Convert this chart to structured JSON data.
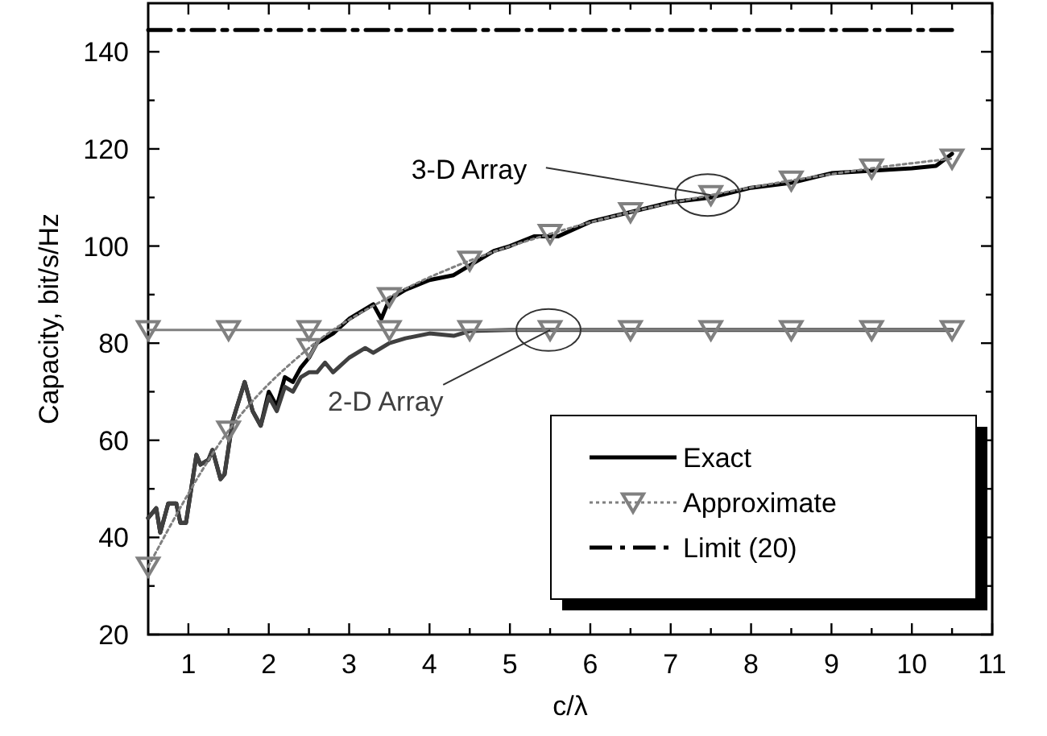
{
  "chart_data": {
    "type": "line",
    "xlabel": "c/λ",
    "ylabel": "Capacity, bit/s/Hz",
    "xlim": [
      0.5,
      11
    ],
    "ylim": [
      20,
      150
    ],
    "xticks": [
      1,
      {
        "value": 1.5,
        "label": null
      },
      2,
      {
        "value": 2.5,
        "label": null
      },
      3,
      {
        "value": 3.5,
        "label": null
      },
      4,
      {
        "value": 4.5,
        "label": null
      },
      5,
      {
        "value": 5.5,
        "label": null
      },
      6,
      {
        "value": 6.5,
        "label": null
      },
      7,
      {
        "value": 7.5,
        "label": null
      },
      8,
      {
        "value": 8.5,
        "label": null
      },
      9,
      {
        "value": 9.5,
        "label": null
      },
      10,
      {
        "value": 10.5,
        "label": null
      },
      11
    ],
    "yticks": [
      20,
      {
        "value": 30,
        "label": null
      },
      40,
      {
        "value": 50,
        "label": null
      },
      60,
      {
        "value": 70,
        "label": null
      },
      80,
      {
        "value": 90,
        "label": null
      },
      100,
      {
        "value": 110,
        "label": null
      },
      120,
      {
        "value": 130,
        "label": null
      },
      140
    ],
    "grid": false,
    "legend": "bottom right",
    "series": [
      {
        "name": "Exact",
        "color": "#000000",
        "line_style": "solid",
        "marker": "none",
        "x": [
          0.5,
          0.6,
          0.65,
          0.75,
          0.85,
          0.9,
          0.97,
          1.1,
          1.15,
          1.25,
          1.3,
          1.4,
          1.45,
          1.55,
          1.7,
          1.8,
          1.9,
          2.0,
          2.1,
          2.2,
          2.3,
          2.4,
          2.5,
          2.6,
          2.8,
          3.0,
          3.2,
          3.3,
          3.4,
          3.5,
          3.7,
          4.0,
          4.3,
          4.5,
          4.8,
          5.0,
          5.3,
          5.6,
          6.0,
          6.5,
          7.0,
          7.5,
          8.0,
          8.5,
          9.0,
          9.5,
          10.0,
          10.3,
          10.5
        ],
        "values": [
          44,
          46,
          41,
          47,
          47,
          43,
          43,
          57,
          55,
          56,
          58,
          52,
          53,
          64,
          72,
          66,
          63,
          70,
          67,
          73,
          72,
          75,
          77,
          80,
          82,
          85,
          87,
          88,
          85,
          89,
          91,
          93,
          94,
          96,
          99,
          100,
          102,
          102,
          105,
          107,
          109,
          110,
          112,
          113,
          115,
          115.5,
          116,
          116.5,
          119
        ]
      },
      {
        "color": "#404040",
        "line_style": "solid",
        "marker": "none",
        "x": [
          0.5,
          0.6,
          0.65,
          0.75,
          0.85,
          0.9,
          0.97,
          1.1,
          1.15,
          1.25,
          1.3,
          1.4,
          1.45,
          1.55,
          1.7,
          1.8,
          1.9,
          2.0,
          2.1,
          2.2,
          2.3,
          2.4,
          2.5,
          2.6,
          2.7,
          2.8,
          3.0,
          3.2,
          3.3,
          3.5,
          3.7,
          4.0,
          4.3,
          4.5,
          5.0,
          6.0,
          7.0,
          8.0,
          9.0,
          10.0,
          10.5
        ],
        "values": [
          44,
          46,
          41,
          47,
          47,
          43,
          43,
          57,
          55,
          56,
          58,
          52,
          53,
          64,
          72,
          66,
          63,
          69,
          66,
          71,
          70,
          73,
          74,
          74,
          76,
          74,
          77,
          79,
          78,
          80,
          81,
          82,
          81.5,
          82.5,
          82.7,
          82.7,
          82.7,
          82.7,
          82.7,
          82.7,
          82.7
        ]
      },
      {
        "name": "Approximate",
        "color": "#808080",
        "line_style": "dotted",
        "marker": "triangle",
        "x": [
          0.5,
          1.5,
          2.5,
          3.5,
          4.5,
          5.5,
          6.5,
          7.5,
          8.5,
          9.5,
          10.5
        ],
        "values": [
          34,
          62,
          79,
          89.5,
          97,
          102.5,
          107,
          110.5,
          113.5,
          116,
          118
        ]
      },
      {
        "color": "#808080",
        "line_style": "solid",
        "marker": "triangle",
        "x": [
          0.5,
          1.5,
          2.5,
          3.5,
          4.5,
          5.5,
          6.5,
          7.5,
          8.5,
          9.5,
          10.5
        ],
        "values": [
          82.7,
          82.7,
          82.7,
          82.7,
          82.7,
          82.7,
          82.7,
          82.7,
          82.7,
          82.7,
          82.7
        ]
      },
      {
        "name": "Limit (20)",
        "color": "#000000",
        "line_style": "dashed",
        "marker": "none",
        "x": [
          0.5,
          10.5
        ],
        "values": [
          144.5,
          144.5
        ]
      }
    ],
    "annotations": [
      {
        "text": "3-D Array",
        "x": 7.5,
        "y": 110.5
      },
      {
        "text": "2-D Array",
        "x": 5.5,
        "y": 82.7
      }
    ]
  }
}
